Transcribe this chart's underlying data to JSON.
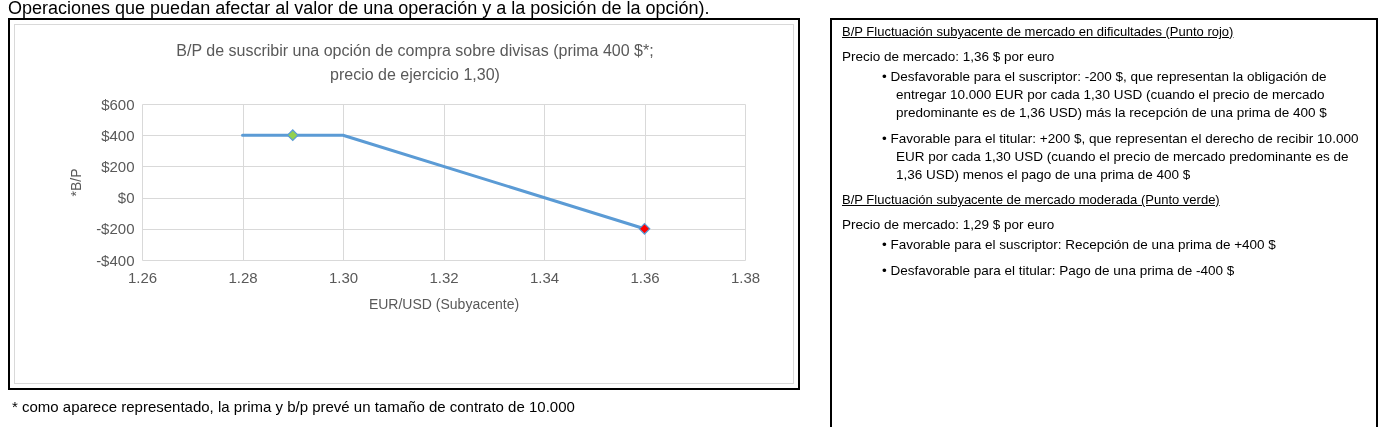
{
  "chart_data": [
    {
      "type": "line",
      "title": "B/P de suscribir una opción de compra sobre divisas (prima 400 $*; precio de ejercicio 1,30)",
      "xlabel": "EUR/USD (Subyacente)",
      "ylabel": "*B/P",
      "series": [
        {
          "type": "line",
          "color": "#5b9bd5",
          "x": [
            1.28,
            1.3,
            1.36
          ],
          "values": [
            400,
            400,
            -200
          ],
          "marker": "none"
        },
        {
          "type": "scatter",
          "x": [
            1.29,
            1.36
          ],
          "values": [
            400,
            -200
          ],
          "colors": [
            "#92d050",
            "#ff0000"
          ],
          "marker": "diamond"
        }
      ],
      "xlim": [
        1.26,
        1.38
      ],
      "xticks": [
        1.26,
        1.28,
        {
          "value": 1.3,
          "label": "1.30"
        },
        1.32,
        1.34,
        1.36,
        1.38
      ],
      "ylim": [
        -400,
        600
      ],
      "yticks": [
        {
          "value": -400,
          "label": "-$400"
        },
        {
          "value": -200,
          "label": "-$200"
        },
        {
          "value": 0,
          "label": "$0"
        },
        {
          "value": 200,
          "label": "$200"
        },
        {
          "value": 400,
          "label": "$400"
        },
        {
          "value": 600,
          "label": "$600"
        }
      ],
      "grid": true,
      "annotations": [
        "Operaciones que puedan afectar al valor de una operación y a la posición de la opción).",
        "* como aparece representado, la prima y b/p prevé un tamaño de contrato de 10.000"
      ]
    },
    {
      "type": "other",
      "annotations": [
        "B/P Fluctuación subyacente de mercado en dificultades (Punto rojo)",
        "Precio de mercado: 1,36 $ por euro",
        "• Desfavorable para el suscriptor: -200 $, que representan la obligación de entregar 10.000 EUR por cada 1,30 USD (cuando el precio de mercado predominante es de 1,36 USD) más la recepción de una prima de 400 $",
        "• Favorable para el titular: +200 $, que representan el derecho de recibir 10.000 EUR por cada 1,30 USD (cuando el precio de mercado predominante es de 1,36 USD) menos el pago de una prima de 400 $",
        "B/P Fluctuación subyacente de mercado moderada (Punto verde)",
        "Precio de mercado: 1,29 $ por euro",
        "• Favorable para el suscriptor: Recepción de una prima de +400 $",
        "• Desfavorable para el titular: Pago de una prima de -400 $"
      ]
    }
  ]
}
